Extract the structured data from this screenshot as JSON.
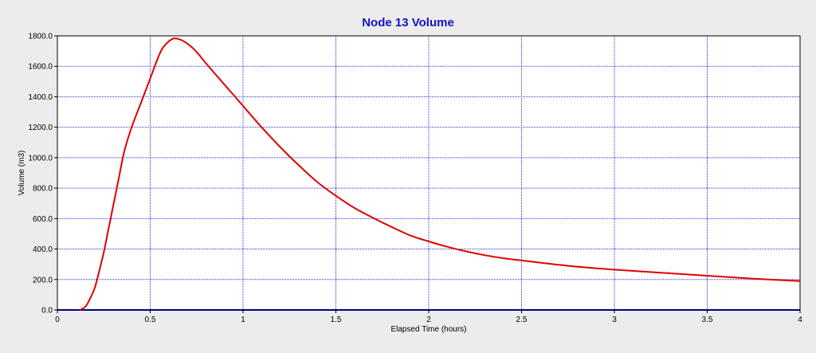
{
  "chart_data": {
    "type": "line",
    "title": "Node 13 Volume",
    "xlabel": "Elapsed Time (hours)",
    "ylabel": "Volume (m3)",
    "xlim": [
      0,
      4
    ],
    "ylim": [
      0,
      1800
    ],
    "grid": true,
    "x_ticks": [
      0,
      0.5,
      1,
      1.5,
      2,
      2.5,
      3,
      3.5,
      4
    ],
    "x_tick_labels": [
      "0",
      "0.5",
      "1",
      "1.5",
      "2",
      "2.5",
      "3",
      "3.5",
      "4"
    ],
    "y_ticks": [
      0,
      200,
      400,
      600,
      800,
      1000,
      1200,
      1400,
      1600,
      1800
    ],
    "y_tick_labels": [
      "0.0",
      "200.0",
      "400.0",
      "600.0",
      "800.0",
      "1000.0",
      "1200.0",
      "1400.0",
      "1600.0",
      "1800.0"
    ],
    "series": [
      {
        "color": "#e00000",
        "x": [
          0.12,
          0.15,
          0.17,
          0.2,
          0.22,
          0.25,
          0.27,
          0.3,
          0.33,
          0.36,
          0.4,
          0.45,
          0.5,
          0.55,
          0.58,
          0.62,
          0.65,
          0.68,
          0.72,
          0.76,
          0.8,
          0.85,
          0.9,
          0.95,
          1.0,
          1.1,
          1.2,
          1.3,
          1.4,
          1.5,
          1.6,
          1.7,
          1.8,
          1.9,
          2.0,
          2.1,
          2.2,
          2.3,
          2.4,
          2.5,
          2.75,
          3.0,
          3.25,
          3.5,
          3.75,
          4.0
        ],
        "values": [
          0,
          20,
          60,
          140,
          230,
          380,
          500,
          680,
          860,
          1040,
          1200,
          1360,
          1520,
          1680,
          1740,
          1780,
          1780,
          1765,
          1730,
          1680,
          1620,
          1550,
          1480,
          1410,
          1340,
          1200,
          1070,
          950,
          840,
          750,
          670,
          605,
          545,
          490,
          450,
          415,
          385,
          360,
          340,
          325,
          290,
          265,
          245,
          225,
          205,
          190
        ]
      }
    ]
  },
  "colors": {
    "background": "#ececec",
    "plot_area": "#ffffff",
    "grid": "#2a2ad0",
    "title": "#1313c8",
    "axis": "#000080"
  }
}
